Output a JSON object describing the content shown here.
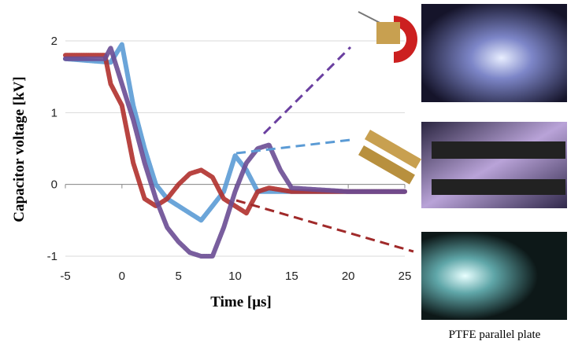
{
  "chart_data": {
    "type": "line",
    "xlabel": "Time [μs]",
    "ylabel": "Capacitor voltage [kV]",
    "xlim": [
      -5,
      25
    ],
    "xticks": [
      -5,
      0,
      5,
      10,
      15,
      20,
      25
    ],
    "ylim": [
      -1,
      2
    ],
    "yticks": [
      -1,
      0,
      1,
      2
    ],
    "grid": true,
    "series": [
      {
        "color": "#5b9bd5",
        "x": [
          -5,
          -1,
          0,
          1,
          2,
          3,
          4,
          5,
          6,
          7,
          8,
          9,
          10,
          11,
          12,
          15,
          20,
          25
        ],
        "values": [
          1.75,
          1.7,
          1.95,
          1.1,
          0.5,
          0,
          -0.2,
          -0.3,
          -0.4,
          -0.5,
          -0.3,
          -0.1,
          0.4,
          0.2,
          -0.1,
          -0.1,
          -0.1,
          -0.1
        ]
      },
      {
        "color": "#b0302c",
        "x": [
          -5,
          -1.5,
          -1,
          0,
          1,
          2,
          3,
          4,
          5,
          6,
          7,
          8,
          9,
          10,
          11,
          12,
          13,
          15,
          20,
          25
        ],
        "values": [
          1.8,
          1.8,
          1.4,
          1.1,
          0.3,
          -0.2,
          -0.3,
          -0.2,
          0,
          0.15,
          0.2,
          0.1,
          -0.2,
          -0.3,
          -0.4,
          -0.1,
          -0.05,
          -0.1,
          -0.1,
          -0.1
        ]
      },
      {
        "color": "#6a4c93",
        "x": [
          -5,
          -1.5,
          -1,
          0,
          1,
          2,
          3,
          4,
          5,
          6,
          7,
          8,
          9,
          10,
          11,
          12,
          13,
          14,
          15,
          20,
          25
        ],
        "values": [
          1.75,
          1.75,
          1.9,
          1.4,
          0.9,
          0.3,
          -0.2,
          -0.6,
          -0.8,
          -0.95,
          -1,
          -1,
          -0.6,
          -0.1,
          0.3,
          0.5,
          0.55,
          0.2,
          -0.05,
          -0.1,
          -0.1
        ]
      }
    ]
  },
  "photo_caption": "PTFE parallel plate"
}
